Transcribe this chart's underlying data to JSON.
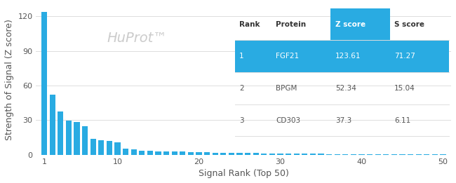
{
  "bar_color": "#29ABE2",
  "bar_values": [
    123.61,
    52.34,
    37.3,
    29.5,
    28.5,
    25.0,
    14.0,
    12.5,
    12.0,
    11.0,
    5.0,
    4.5,
    3.5,
    3.2,
    3.0,
    2.8,
    2.7,
    2.6,
    2.5,
    2.4,
    2.0,
    1.9,
    1.8,
    1.7,
    1.6,
    1.5,
    1.4,
    1.3,
    1.2,
    1.1,
    0.9,
    0.85,
    0.8,
    0.75,
    0.7,
    0.65,
    0.6,
    0.55,
    0.5,
    0.45,
    0.4,
    0.38,
    0.35,
    0.32,
    0.3,
    0.28,
    0.25,
    0.22,
    0.2,
    0.18
  ],
  "xlabel": "Signal Rank (Top 50)",
  "ylabel": "Strength of Signal (Z score)",
  "watermark": "HuProt™",
  "watermark_color": "#cccccc",
  "yticks": [
    0,
    30,
    60,
    90,
    120
  ],
  "xticks": [
    1,
    10,
    20,
    30,
    40,
    50
  ],
  "xlim": [
    0,
    51
  ],
  "ylim": [
    0,
    130
  ],
  "background_color": "#ffffff",
  "table_header_bg": "#29ABE2",
  "table_row1_bg": "#29ABE2",
  "table_header_text": "#ffffff",
  "table_row1_text": "#ffffff",
  "table_other_text": "#555555",
  "table_bold_text": "#333333",
  "table_headers": [
    "Rank",
    "Protein",
    "Z score",
    "S score"
  ],
  "table_rows": [
    [
      "1",
      "FGF21",
      "123.61",
      "71.27"
    ],
    [
      "2",
      "BPGM",
      "52.34",
      "15.04"
    ],
    [
      "3",
      "CD303",
      "37.3",
      "6.11"
    ]
  ],
  "grid_color": "#dddddd",
  "tick_label_color": "#555555",
  "label_color": "#555555"
}
